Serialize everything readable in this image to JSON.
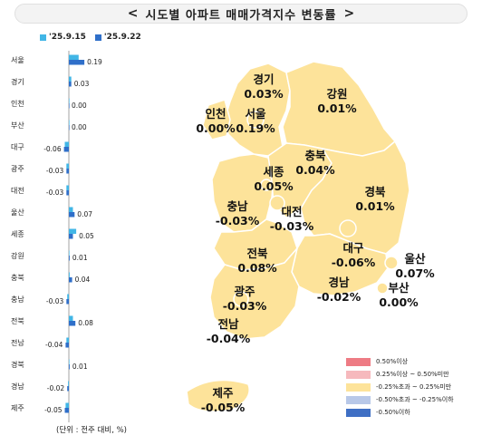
{
  "header": {
    "title": "시도별 아파트 매매가격지수 변동률",
    "prev_arrow": "<",
    "next_arrow": ">"
  },
  "legend": {
    "series": [
      {
        "label": "'25.9.15",
        "color": "#41b6e6"
      },
      {
        "label": "'25.9.22",
        "color": "#2f6fc9"
      }
    ]
  },
  "unit_note": "(단위 : 전주 대비, %)",
  "chart_data": {
    "type": "bar",
    "orientation": "horizontal",
    "categories": [
      "서울",
      "경기",
      "인천",
      "부산",
      "대구",
      "광주",
      "대전",
      "울산",
      "세종",
      "강원",
      "충북",
      "충남",
      "전북",
      "전남",
      "경북",
      "경남",
      "제주"
    ],
    "series": [
      {
        "name": "'25.9.15",
        "values": [
          0.12,
          0.03,
          0.0,
          0.0,
          -0.05,
          -0.03,
          -0.03,
          0.05,
          0.09,
          0.0,
          0.01,
          -0.02,
          0.05,
          -0.03,
          0.0,
          -0.01,
          -0.04
        ]
      },
      {
        "name": "'25.9.22",
        "values": [
          0.19,
          0.03,
          0.0,
          0.0,
          -0.06,
          -0.03,
          -0.03,
          0.07,
          0.05,
          0.01,
          0.04,
          -0.03,
          0.08,
          -0.04,
          0.01,
          -0.02,
          -0.05
        ]
      }
    ],
    "data_labels": [
      "0.19",
      "0.03",
      "0.00",
      "0.00",
      "-0.06",
      "-0.03",
      "-0.03",
      "0.07",
      "0.05",
      "0.01",
      "0.04",
      "-0.03",
      "0.08",
      "-0.04",
      "0.01",
      "-0.02",
      "-0.05"
    ]
  },
  "map": {
    "regions": [
      {
        "id": "gyeonggi",
        "name": "경기",
        "value": "0.03%",
        "color": "#fde39a"
      },
      {
        "id": "seoul",
        "name": "서울",
        "value": "0.19%",
        "color": "#fde39a"
      },
      {
        "id": "incheon",
        "name": "인천",
        "value": "0.00%",
        "color": "#fde39a"
      },
      {
        "id": "gangwon",
        "name": "강원",
        "value": "0.01%",
        "color": "#fde39a"
      },
      {
        "id": "chungbuk",
        "name": "충북",
        "value": "0.04%",
        "color": "#fde39a"
      },
      {
        "id": "sejong",
        "name": "세종",
        "value": "0.05%",
        "color": "#fde39a"
      },
      {
        "id": "chungnam",
        "name": "충남",
        "value": "-0.03%",
        "color": "#fde39a"
      },
      {
        "id": "daejeon",
        "name": "대전",
        "value": "-0.03%",
        "color": "#fde39a"
      },
      {
        "id": "gyeongbuk",
        "name": "경북",
        "value": "0.01%",
        "color": "#fde39a"
      },
      {
        "id": "daegu",
        "name": "대구",
        "value": "-0.06%",
        "color": "#fde39a"
      },
      {
        "id": "ulsan",
        "name": "울산",
        "value": "0.07%",
        "color": "#fde39a"
      },
      {
        "id": "jeonbuk",
        "name": "전북",
        "value": "0.08%",
        "color": "#fde39a"
      },
      {
        "id": "gwangju",
        "name": "광주",
        "value": "-0.03%",
        "color": "#fde39a"
      },
      {
        "id": "gyeongnam",
        "name": "경남",
        "value": "-0.02%",
        "color": "#fde39a"
      },
      {
        "id": "busan",
        "name": "부산",
        "value": "0.00%",
        "color": "#fde39a"
      },
      {
        "id": "jeonnam",
        "name": "전남",
        "value": "-0.04%",
        "color": "#fde39a"
      },
      {
        "id": "jeju",
        "name": "제주",
        "value": "-0.05%",
        "color": "#fde39a"
      }
    ],
    "legend": [
      {
        "label": "0.50%이상",
        "color": "#ee7b84"
      },
      {
        "label": "0.25%이상 ~ 0.50%미만",
        "color": "#f6b9bd"
      },
      {
        "label": "-0.25%초과 ~ 0.25%미만",
        "color": "#fde39a"
      },
      {
        "label": "-0.50%초과 ~ -0.25%이하",
        "color": "#b8c8e8"
      },
      {
        "label": "-0.50%이하",
        "color": "#3f6fc4"
      }
    ]
  }
}
